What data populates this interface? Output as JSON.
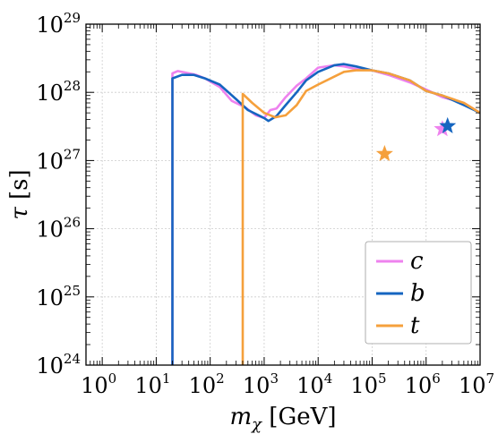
{
  "chart_data": {
    "type": "line",
    "xlabel": "m_χ [GeV]",
    "ylabel": "τ [s]",
    "xscale": "log",
    "yscale": "log",
    "xlim": [
      0.5,
      10000000
    ],
    "ylim": [
      1e+24,
      1e+29
    ],
    "grid": true,
    "legend_position": "bottom-right",
    "x_ticks": [
      {
        "value": 1,
        "base": "10",
        "exp": "0"
      },
      {
        "value": 10,
        "base": "10",
        "exp": "1"
      },
      {
        "value": 100,
        "base": "10",
        "exp": "2"
      },
      {
        "value": 1000,
        "base": "10",
        "exp": "3"
      },
      {
        "value": 10000,
        "base": "10",
        "exp": "4"
      },
      {
        "value": 100000,
        "base": "10",
        "exp": "5"
      },
      {
        "value": 1000000,
        "base": "10",
        "exp": "6"
      },
      {
        "value": 10000000,
        "base": "10",
        "exp": "7"
      }
    ],
    "y_ticks": [
      {
        "value": 1e+24,
        "base": "10",
        "exp": "24"
      },
      {
        "value": 1e+25,
        "base": "10",
        "exp": "25"
      },
      {
        "value": 1e+26,
        "base": "10",
        "exp": "26"
      },
      {
        "value": 1e+27,
        "base": "10",
        "exp": "27"
      },
      {
        "value": 1e+28,
        "base": "10",
        "exp": "28"
      },
      {
        "value": 1e+29,
        "base": "10",
        "exp": "29"
      }
    ],
    "series": [
      {
        "name": "c",
        "color": "#ee82ee",
        "x": [
          20,
          20,
          25,
          35,
          55,
          80,
          150,
          250,
          450,
          700,
          1000,
          1300,
          1700,
          2500,
          4000,
          6000,
          10000,
          20000,
          30000,
          50000,
          100000,
          200000,
          500000,
          1000000,
          2000000,
          5000000,
          10000000
        ],
        "y": [
          1e+24,
          1.9e+28,
          2.05e+28,
          1.95e+28,
          1.8e+28,
          1.6e+28,
          1.2e+28,
          7.5e+27,
          6e+27,
          4.6e+27,
          4.2e+27,
          5.5e+27,
          5.8e+27,
          8.5e+27,
          1.25e+28,
          1.6e+28,
          2.3e+28,
          2.5e+28,
          2.4e+28,
          2.2e+28,
          2.1e+28,
          1.8e+28,
          1.4e+28,
          1.1e+28,
          8.5e+27,
          7e+27,
          5e+27
        ]
      },
      {
        "name": "b",
        "color": "#1565c0",
        "x": [
          20,
          20,
          30,
          50,
          80,
          150,
          300,
          500,
          1000,
          1200,
          1700,
          2500,
          4000,
          6000,
          10000,
          20000,
          30000,
          50000,
          100000,
          200000,
          500000,
          1000000,
          2000000,
          5000000,
          10000000
        ],
        "y": [
          1e+24,
          1.6e+28,
          1.8e+28,
          1.8e+28,
          1.6e+28,
          1.3e+28,
          8e+27,
          5.5e+27,
          4.2e+27,
          3.8e+27,
          4.5e+27,
          6.5e+27,
          1e+28,
          1.5e+28,
          2e+28,
          2.5e+28,
          2.6e+28,
          2.4e+28,
          2.1e+28,
          1.9e+28,
          1.5e+28,
          1.05e+28,
          9e+27,
          6.5e+27,
          5e+27
        ]
      },
      {
        "name": "t",
        "color": "#f5a03c",
        "x": [
          400,
          400,
          600,
          1000,
          1600,
          2500,
          4000,
          6000,
          10000,
          20000,
          30000,
          50000,
          100000,
          200000,
          500000,
          1000000,
          2000000,
          5000000,
          10000000
        ],
        "y": [
          1e+24,
          9.5e+27,
          7e+27,
          5e+27,
          4.3e+27,
          4.6e+27,
          6.5e+27,
          1.05e+28,
          1.3e+28,
          1.7e+28,
          2e+28,
          2.1e+28,
          2.1e+28,
          1.9e+28,
          1.5e+28,
          1.05e+28,
          9e+27,
          7e+27,
          5e+27
        ]
      }
    ],
    "markers": [
      {
        "series": "c",
        "x": 2000000,
        "y": 2.9e+27,
        "symbol": "star"
      },
      {
        "series": "b",
        "x": 2500000,
        "y": 3.2e+27,
        "symbol": "star"
      },
      {
        "series": "t",
        "x": 170000,
        "y": 1.25e+27,
        "symbol": "star"
      }
    ]
  }
}
